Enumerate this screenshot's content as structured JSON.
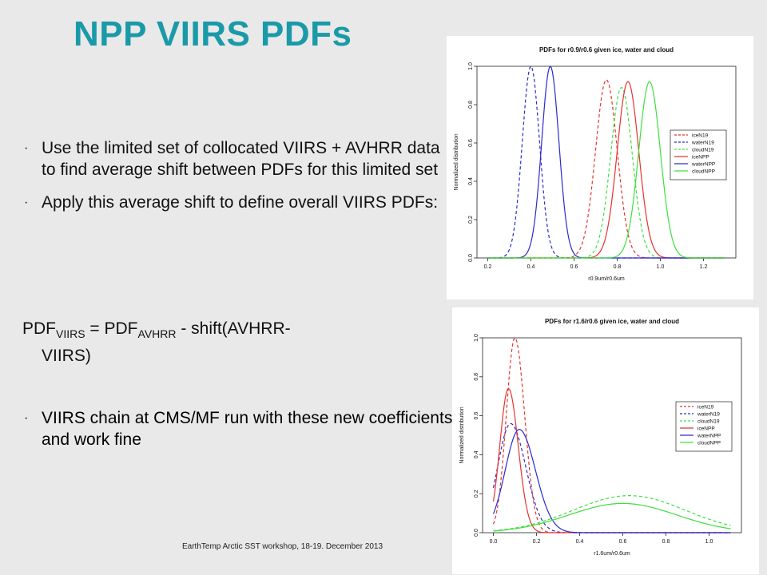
{
  "slide": {
    "title": "NPP VIIRS PDFs",
    "bullet_mark": "·",
    "bullets": [
      "Use the limited set of collocated VIIRS + AVHRR data to find average shift between PDFs for this limited set",
      "Apply this average shift to define overall VIIRS PDFs:",
      "VIIRS chain at CMS/MF run with these new coefficients and work fine"
    ],
    "formula": {
      "lhs": "PDF",
      "lhs_sub": "VIIRS",
      "eq": " = PDF",
      "rhs_sub": "AVHRR",
      "rhs_rest": " - shift(AVHRR-",
      "cont": "VIIRS)"
    },
    "footer": "EarthTemp Arctic SST workshop, 18-19. December 2013"
  },
  "colors": {
    "title": "#1a9aa8",
    "red": "#e8322e",
    "blue": "#2a2ad0",
    "green": "#3ee03e"
  },
  "chart_data": [
    {
      "type": "line",
      "title": "PDFs for r0.9/r0.6 given ice, water and cloud",
      "xlabel": "r0.9um/r0.6um",
      "ylabel": "Normalized distribution",
      "xlim": [
        0.15,
        1.35
      ],
      "ylim": [
        0,
        1.0
      ],
      "xticks": [
        0.2,
        0.4,
        0.6,
        0.8,
        1.0,
        1.2
      ],
      "xtick_labels": [
        "0.2",
        "0.4",
        "0.6",
        "0.8",
        "1.0",
        "1.2"
      ],
      "yticks": [
        0.0,
        0.2,
        0.4,
        0.6,
        0.8,
        1.0
      ],
      "ytick_labels": [
        "0.0",
        "0.2",
        "0.4",
        "0.6",
        "0.8",
        "1.0"
      ],
      "legend_position": "right",
      "x_range": [
        0.2,
        1.3
      ],
      "series": [
        {
          "name": "iceN19",
          "color": "#e8322e",
          "dash": true,
          "mu": 0.75,
          "sigma": 0.05,
          "sigma_right": 0.05,
          "amp": 0.93
        },
        {
          "name": "waterN19",
          "color": "#2a2ad0",
          "dash": true,
          "mu": 0.4,
          "sigma": 0.04,
          "sigma_right": 0.04,
          "amp": 1.0
        },
        {
          "name": "cloudN19",
          "color": "#3ee03e",
          "dash": true,
          "mu": 0.82,
          "sigma": 0.05,
          "sigma_right": 0.05,
          "amp": 0.89
        },
        {
          "name": "iceNPP",
          "color": "#e8322e",
          "dash": false,
          "mu": 0.85,
          "sigma": 0.05,
          "sigma_right": 0.05,
          "amp": 0.92
        },
        {
          "name": "waterNPP",
          "color": "#2a2ad0",
          "dash": false,
          "mu": 0.49,
          "sigma": 0.04,
          "sigma_right": 0.04,
          "amp": 1.0
        },
        {
          "name": "cloudNPP",
          "color": "#3ee03e",
          "dash": false,
          "mu": 0.95,
          "sigma": 0.05,
          "sigma_right": 0.05,
          "amp": 0.92
        }
      ]
    },
    {
      "type": "line",
      "title": "PDFs for r1.6/r0.6 given ice, water and cloud",
      "xlabel": "r1.6um/r0.6um",
      "ylabel": "Normalized distribution",
      "xlim": [
        -0.05,
        1.15
      ],
      "ylim": [
        0,
        1.0
      ],
      "xticks": [
        0.0,
        0.2,
        0.4,
        0.6,
        0.8,
        1.0
      ],
      "xtick_labels": [
        "0.0",
        "0.2",
        "0.4",
        "0.6",
        "0.8",
        "1.0"
      ],
      "yticks": [
        0.0,
        0.2,
        0.4,
        0.6,
        0.8,
        1.0
      ],
      "ytick_labels": [
        "0.0",
        "0.2",
        "0.4",
        "0.6",
        "0.8",
        "1.0"
      ],
      "legend_position": "right",
      "x_range": [
        0.0,
        1.1
      ],
      "series": [
        {
          "name": "iceN19",
          "color": "#e8322e",
          "dash": true,
          "mu": 0.1,
          "sigma": 0.04,
          "sigma_right": 0.045,
          "amp": 1.0
        },
        {
          "name": "waterN19",
          "color": "#2a2ad0",
          "dash": true,
          "mu": 0.08,
          "sigma": 0.06,
          "sigma_right": 0.07,
          "amp": 0.56
        },
        {
          "name": "cloudN19",
          "color": "#3ee03e",
          "dash": true,
          "mu": 0.63,
          "sigma": 0.26,
          "sigma_right": 0.26,
          "amp": 0.19
        },
        {
          "name": "iceNPP",
          "color": "#e8322e",
          "dash": false,
          "mu": 0.07,
          "sigma": 0.04,
          "sigma_right": 0.045,
          "amp": 0.74
        },
        {
          "name": "waterNPP",
          "color": "#2a2ad0",
          "dash": false,
          "mu": 0.12,
          "sigma": 0.065,
          "sigma_right": 0.075,
          "amp": 0.53
        },
        {
          "name": "cloudNPP",
          "color": "#3ee03e",
          "dash": false,
          "mu": 0.6,
          "sigma": 0.25,
          "sigma_right": 0.25,
          "amp": 0.15
        }
      ]
    }
  ]
}
